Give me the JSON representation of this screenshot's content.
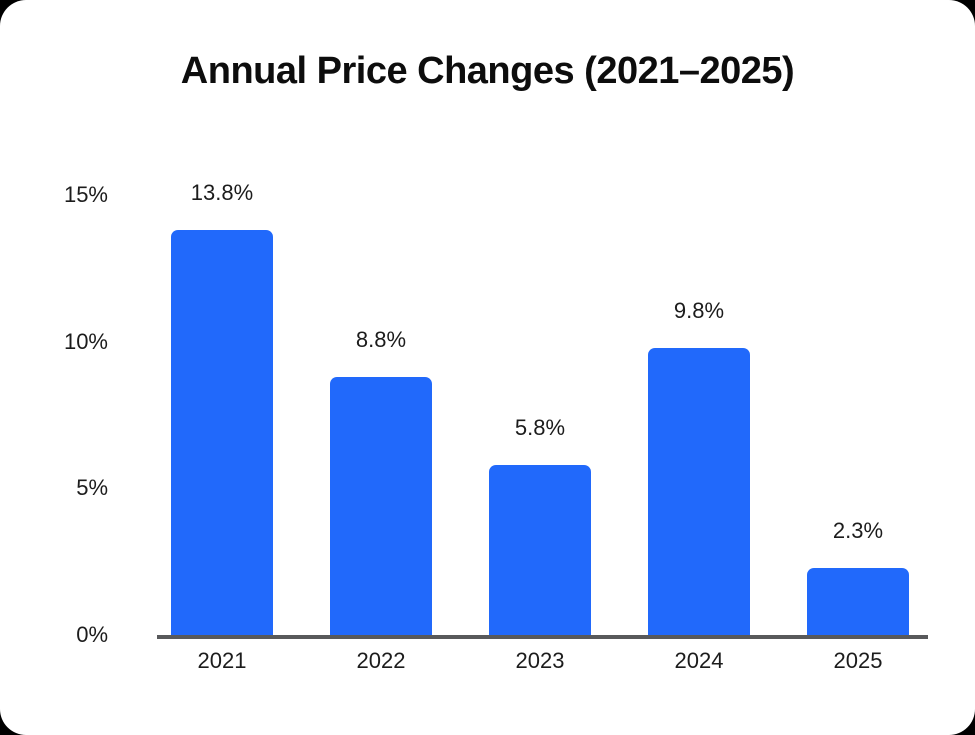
{
  "page": {
    "background_color": "#000000",
    "card_color": "#ffffff"
  },
  "chart": {
    "title": "Annual Price Changes (2021–2025)"
  },
  "chart_data": {
    "type": "bar",
    "title": "Annual Price Changes (2021–2025)",
    "categories": [
      "2021",
      "2022",
      "2023",
      "2024",
      "2025"
    ],
    "values": [
      13.8,
      8.8,
      5.8,
      9.8,
      2.3
    ],
    "value_labels": [
      "13.8%",
      "8.8%",
      "5.8%",
      "9.8%",
      "2.3%"
    ],
    "xlabel": "",
    "ylabel": "",
    "ylim": [
      0,
      15
    ],
    "y_ticks": [
      {
        "value": 0,
        "label": "0%"
      },
      {
        "value": 5,
        "label": "5%"
      },
      {
        "value": 10,
        "label": "10%"
      },
      {
        "value": 15,
        "label": "15%"
      }
    ],
    "grid": false,
    "legend": false,
    "bar_color": "#2169FB",
    "axis_line_color": "#58595B",
    "label_color": "#1c1c1c"
  }
}
